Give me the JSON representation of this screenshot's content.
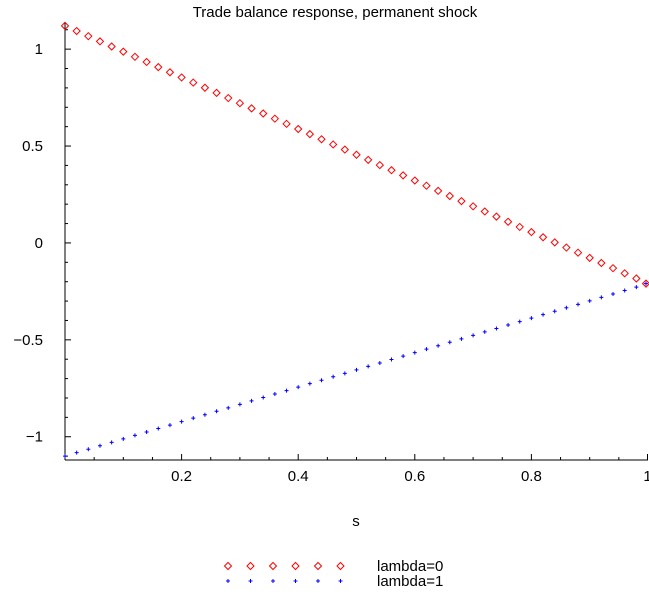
{
  "chart_data": {
    "type": "scatter",
    "title": "Trade balance response, permanent shock",
    "xlabel": "s",
    "ylabel": "",
    "xlim": [
      0,
      1
    ],
    "ylim": [
      -1.12,
      1.14
    ],
    "x_ticks": [
      0.2,
      0.4,
      0.6,
      0.8,
      1
    ],
    "x_tick_labels": [
      "0.2",
      "0.4",
      "0.6",
      "0.8",
      "1"
    ],
    "y_ticks": [
      1,
      0.5,
      0,
      -0.5,
      -1
    ],
    "y_tick_labels": [
      "1",
      "0.5",
      "0",
      "−0.5",
      "−1"
    ],
    "grid": false,
    "legend_position": "bottom-center",
    "series": [
      {
        "name": "lambda=0",
        "marker": "diamond",
        "color": "#ff0000",
        "start": [
          0,
          1.12
        ],
        "end": [
          1,
          -0.21
        ],
        "points": 50
      },
      {
        "name": "lambda=1",
        "marker": "plus",
        "color": "#0000ff",
        "start": [
          0,
          -1.1
        ],
        "end": [
          1,
          -0.21
        ],
        "points": 50
      }
    ]
  }
}
